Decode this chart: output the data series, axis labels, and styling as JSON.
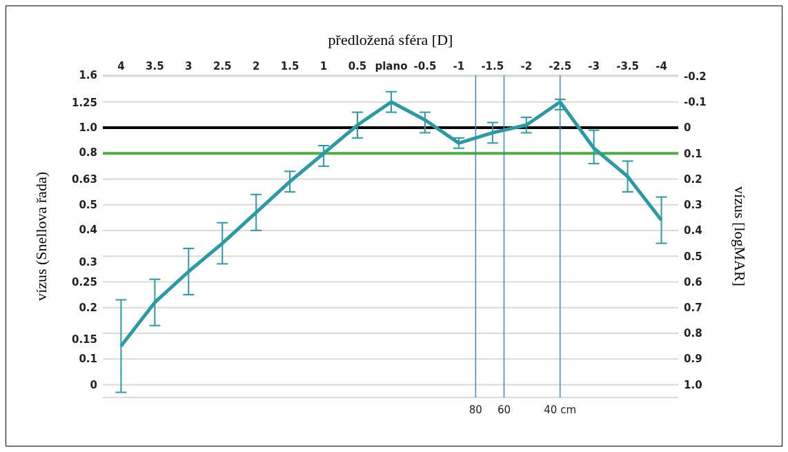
{
  "chart_data": {
    "type": "line",
    "xlabel": "předložená sféra [D]",
    "ylabel": "vízus (Snellova řada)",
    "y2label": "vízus [logMAR]",
    "x": [
      4,
      3.5,
      3,
      2.5,
      2,
      1.5,
      1,
      0.5,
      0,
      -0.5,
      -1,
      -1.5,
      -2,
      -2.5,
      -3,
      -3.5,
      -4
    ],
    "series": [
      {
        "color": "#2a9ba5",
        "axis": "y2",
        "values": [
          0.85,
          0.68,
          0.56,
          0.45,
          0.33,
          0.21,
          0.1,
          -0.01,
          -0.1,
          -0.03,
          0.06,
          0.02,
          -0.01,
          -0.1,
          0.08,
          0.19,
          0.36
        ],
        "errors": [
          [
            0.67,
            1.03
          ],
          [
            0.59,
            0.77
          ],
          [
            0.47,
            0.65
          ],
          [
            0.37,
            0.53
          ],
          [
            0.26,
            0.4
          ],
          [
            0.17,
            0.25
          ],
          [
            0.07,
            0.15
          ],
          [
            -0.06,
            0.04
          ],
          [
            -0.14,
            -0.06
          ],
          [
            -0.06,
            0.02
          ],
          [
            0.04,
            0.08
          ],
          [
            -0.02,
            0.06
          ],
          [
            -0.04,
            0.02
          ],
          [
            -0.11,
            -0.07
          ],
          [
            0.01,
            0.14
          ],
          [
            0.13,
            0.25
          ],
          [
            0.27,
            0.45
          ]
        ]
      }
    ],
    "xlim": [
      4.27,
      -4.25
    ],
    "xticks": [
      4,
      3.5,
      3,
      2.5,
      2,
      1.5,
      1,
      0.5,
      {
        "value": 0,
        "label": "plano"
      },
      -0.5,
      -1,
      -1.5,
      -2,
      -2.5,
      -3,
      -3.5,
      -4
    ],
    "log": "y",
    "ylim": [
      0.0891,
      1.6
    ],
    "yticks": [
      1.6,
      1.25,
      {
        "value": 1,
        "label": "1.0"
      },
      0.8,
      0.63,
      0.5,
      0.4,
      0.3,
      0.25,
      0.2,
      0.15,
      {
        "value": 0.126,
        "label": "0.1"
      },
      {
        "value": 0.1,
        "label": "0"
      }
    ],
    "y2lim": [
      1.05,
      -0.204
    ],
    "y2ticks": [
      -0.2,
      -0.1,
      0,
      0.1,
      0.2,
      0.3,
      0.4,
      0.5,
      0.6,
      0.7,
      0.8,
      0.9,
      {
        "value": 1,
        "label": "1.0"
      }
    ],
    "ref_lines": [
      {
        "axis": "y2",
        "value": 0,
        "color": "#000000"
      },
      {
        "axis": "y2",
        "value": 0.1,
        "color": "#4caf3f"
      },
      {
        "axis": "x",
        "value": -1.25,
        "color": "#3d85c6"
      },
      {
        "axis": "x",
        "value": -1.67,
        "color": "#3d85c6"
      },
      {
        "axis": "x",
        "value": -2.5,
        "color": "#3d85c6"
      }
    ],
    "annotations": [
      "80",
      "60",
      "40 cm"
    ],
    "grid": "y",
    "marker": "none",
    "line_style": "solid",
    "legend": false
  }
}
